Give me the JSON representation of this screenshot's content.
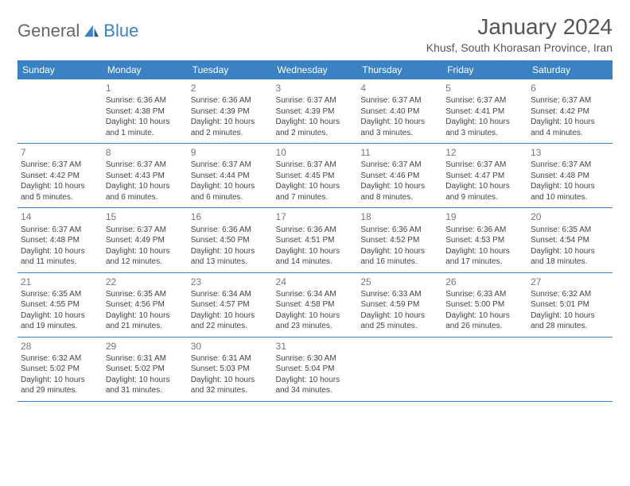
{
  "logo": {
    "text1": "General",
    "text2": "Blue"
  },
  "header": {
    "title": "January 2024",
    "location": "Khusf, South Khorasan Province, Iran"
  },
  "colors": {
    "header_bg": "#3b82c4",
    "header_fg": "#ffffff",
    "text": "#444444",
    "border": "#3b82c4",
    "page_bg": "#ffffff"
  },
  "weekdays": [
    "Sunday",
    "Monday",
    "Tuesday",
    "Wednesday",
    "Thursday",
    "Friday",
    "Saturday"
  ],
  "grid_rows": 5,
  "grid_cols": 7,
  "first_day_col": 1,
  "last_day": 31,
  "days": [
    {
      "n": 1,
      "sr": "6:36 AM",
      "ss": "4:38 PM",
      "dl": "10 hours and 1 minute."
    },
    {
      "n": 2,
      "sr": "6:36 AM",
      "ss": "4:39 PM",
      "dl": "10 hours and 2 minutes."
    },
    {
      "n": 3,
      "sr": "6:37 AM",
      "ss": "4:39 PM",
      "dl": "10 hours and 2 minutes."
    },
    {
      "n": 4,
      "sr": "6:37 AM",
      "ss": "4:40 PM",
      "dl": "10 hours and 3 minutes."
    },
    {
      "n": 5,
      "sr": "6:37 AM",
      "ss": "4:41 PM",
      "dl": "10 hours and 3 minutes."
    },
    {
      "n": 6,
      "sr": "6:37 AM",
      "ss": "4:42 PM",
      "dl": "10 hours and 4 minutes."
    },
    {
      "n": 7,
      "sr": "6:37 AM",
      "ss": "4:42 PM",
      "dl": "10 hours and 5 minutes."
    },
    {
      "n": 8,
      "sr": "6:37 AM",
      "ss": "4:43 PM",
      "dl": "10 hours and 6 minutes."
    },
    {
      "n": 9,
      "sr": "6:37 AM",
      "ss": "4:44 PM",
      "dl": "10 hours and 6 minutes."
    },
    {
      "n": 10,
      "sr": "6:37 AM",
      "ss": "4:45 PM",
      "dl": "10 hours and 7 minutes."
    },
    {
      "n": 11,
      "sr": "6:37 AM",
      "ss": "4:46 PM",
      "dl": "10 hours and 8 minutes."
    },
    {
      "n": 12,
      "sr": "6:37 AM",
      "ss": "4:47 PM",
      "dl": "10 hours and 9 minutes."
    },
    {
      "n": 13,
      "sr": "6:37 AM",
      "ss": "4:48 PM",
      "dl": "10 hours and 10 minutes."
    },
    {
      "n": 14,
      "sr": "6:37 AM",
      "ss": "4:48 PM",
      "dl": "10 hours and 11 minutes."
    },
    {
      "n": 15,
      "sr": "6:37 AM",
      "ss": "4:49 PM",
      "dl": "10 hours and 12 minutes."
    },
    {
      "n": 16,
      "sr": "6:36 AM",
      "ss": "4:50 PM",
      "dl": "10 hours and 13 minutes."
    },
    {
      "n": 17,
      "sr": "6:36 AM",
      "ss": "4:51 PM",
      "dl": "10 hours and 14 minutes."
    },
    {
      "n": 18,
      "sr": "6:36 AM",
      "ss": "4:52 PM",
      "dl": "10 hours and 16 minutes."
    },
    {
      "n": 19,
      "sr": "6:36 AM",
      "ss": "4:53 PM",
      "dl": "10 hours and 17 minutes."
    },
    {
      "n": 20,
      "sr": "6:35 AM",
      "ss": "4:54 PM",
      "dl": "10 hours and 18 minutes."
    },
    {
      "n": 21,
      "sr": "6:35 AM",
      "ss": "4:55 PM",
      "dl": "10 hours and 19 minutes."
    },
    {
      "n": 22,
      "sr": "6:35 AM",
      "ss": "4:56 PM",
      "dl": "10 hours and 21 minutes."
    },
    {
      "n": 23,
      "sr": "6:34 AM",
      "ss": "4:57 PM",
      "dl": "10 hours and 22 minutes."
    },
    {
      "n": 24,
      "sr": "6:34 AM",
      "ss": "4:58 PM",
      "dl": "10 hours and 23 minutes."
    },
    {
      "n": 25,
      "sr": "6:33 AM",
      "ss": "4:59 PM",
      "dl": "10 hours and 25 minutes."
    },
    {
      "n": 26,
      "sr": "6:33 AM",
      "ss": "5:00 PM",
      "dl": "10 hours and 26 minutes."
    },
    {
      "n": 27,
      "sr": "6:32 AM",
      "ss": "5:01 PM",
      "dl": "10 hours and 28 minutes."
    },
    {
      "n": 28,
      "sr": "6:32 AM",
      "ss": "5:02 PM",
      "dl": "10 hours and 29 minutes."
    },
    {
      "n": 29,
      "sr": "6:31 AM",
      "ss": "5:02 PM",
      "dl": "10 hours and 31 minutes."
    },
    {
      "n": 30,
      "sr": "6:31 AM",
      "ss": "5:03 PM",
      "dl": "10 hours and 32 minutes."
    },
    {
      "n": 31,
      "sr": "6:30 AM",
      "ss": "5:04 PM",
      "dl": "10 hours and 34 minutes."
    }
  ],
  "labels": {
    "sunrise": "Sunrise:",
    "sunset": "Sunset:",
    "daylight": "Daylight:"
  }
}
